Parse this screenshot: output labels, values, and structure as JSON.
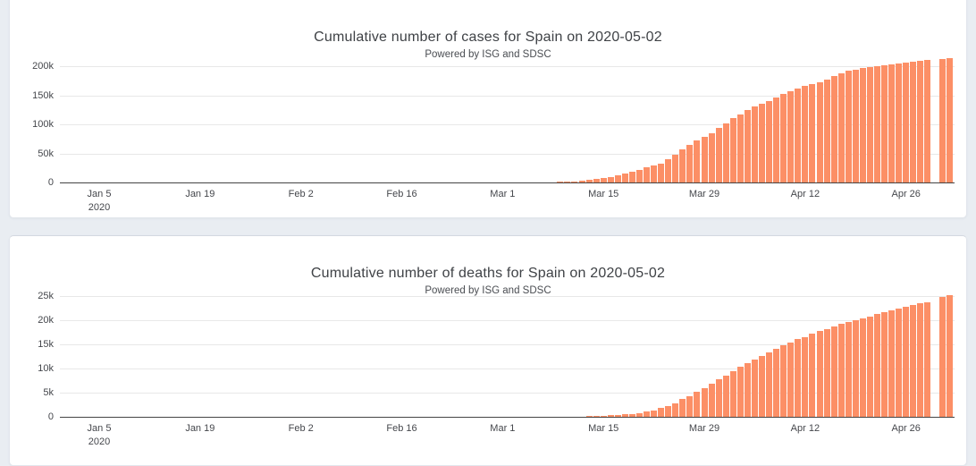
{
  "page": {
    "background_color": "#e9edf2",
    "card_background_color": "#ffffff",
    "text_color": "#444444"
  },
  "chart_data": [
    {
      "type": "bar",
      "title": "Cumulative number of cases for Spain on 2020-05-02",
      "subtitle": "Powered by ISG and SDSC",
      "xlabel": "",
      "ylabel": "",
      "start_date": "2019-12-31",
      "end_date": "2020-05-02",
      "frequency": "daily",
      "ylim": [
        0,
        220000
      ],
      "grid": true,
      "legend": false,
      "bar_color": "#fc8f66",
      "grid_color": "#e8e8e8",
      "axis_color": "#444444",
      "missing_day": "2020-04-30",
      "yticks": [
        {
          "value": 0,
          "label": "0"
        },
        {
          "value": 50000,
          "label": "50k"
        },
        {
          "value": 100000,
          "label": "100k"
        },
        {
          "value": 150000,
          "label": "150k"
        },
        {
          "value": 200000,
          "label": "200k"
        }
      ],
      "xticks": [
        {
          "day": 5,
          "label": "Jan 5",
          "sub": "2020"
        },
        {
          "day": 19,
          "label": "Jan 19"
        },
        {
          "day": 33,
          "label": "Feb 2"
        },
        {
          "day": 47,
          "label": "Feb 16"
        },
        {
          "day": 61,
          "label": "Mar 1"
        },
        {
          "day": 75,
          "label": "Mar 15"
        },
        {
          "day": 89,
          "label": "Mar 29"
        },
        {
          "day": 103,
          "label": "Apr 12"
        },
        {
          "day": 117,
          "label": "Apr 26"
        }
      ],
      "values": [
        0,
        0,
        0,
        0,
        0,
        0,
        0,
        0,
        0,
        0,
        0,
        0,
        0,
        0,
        0,
        0,
        0,
        0,
        0,
        0,
        0,
        0,
        0,
        0,
        0,
        0,
        0,
        0,
        0,
        0,
        0,
        0,
        0,
        0,
        0,
        0,
        0,
        0,
        0,
        0,
        0,
        0,
        0,
        0,
        0,
        0,
        0,
        0,
        0,
        0,
        0,
        0,
        0,
        0,
        0,
        3,
        6,
        13,
        25,
        45,
        66,
        84,
        120,
        165,
        222,
        259,
        400,
        500,
        673,
        1073,
        1695,
        2277,
        3146,
        4473,
        5962,
        7798,
        9942,
        11826,
        14769,
        18077,
        21571,
        25496,
        28768,
        33089,
        39885,
        47610,
        56188,
        64059,
        72248,
        78797,
        85195,
        94417,
        102136,
        110238,
        117710,
        124736,
        130759,
        135032,
        140510,
        146690,
        152446,
        157022,
        161852,
        166019,
        169496,
        172541,
        177633,
        182816,
        188068,
        191726,
        194416,
        196750,
        198674,
        200210,
        202178,
        203715,
        205085,
        206317,
        207634,
        209465,
        210773,
        null,
        211953,
        213435
      ]
    },
    {
      "type": "bar",
      "title": "Cumulative number of deaths for Spain on 2020-05-02",
      "subtitle": "Powered by ISG and SDSC",
      "xlabel": "",
      "ylabel": "",
      "start_date": "2019-12-31",
      "end_date": "2020-05-02",
      "frequency": "daily",
      "ylim": [
        0,
        26000
      ],
      "grid": true,
      "legend": false,
      "bar_color": "#fc8f66",
      "grid_color": "#e8e8e8",
      "axis_color": "#444444",
      "missing_day": "2020-04-30",
      "yticks": [
        {
          "value": 0,
          "label": "0"
        },
        {
          "value": 5000,
          "label": "5k"
        },
        {
          "value": 10000,
          "label": "10k"
        },
        {
          "value": 15000,
          "label": "15k"
        },
        {
          "value": 20000,
          "label": "20k"
        },
        {
          "value": 25000,
          "label": "25k"
        }
      ],
      "xticks": [
        {
          "day": 5,
          "label": "Jan 5",
          "sub": "2020"
        },
        {
          "day": 19,
          "label": "Jan 19"
        },
        {
          "day": 33,
          "label": "Feb 2"
        },
        {
          "day": 47,
          "label": "Feb 16"
        },
        {
          "day": 61,
          "label": "Mar 1"
        },
        {
          "day": 75,
          "label": "Mar 15"
        },
        {
          "day": 89,
          "label": "Mar 29"
        },
        {
          "day": 103,
          "label": "Apr 12"
        },
        {
          "day": 117,
          "label": "Apr 26"
        }
      ],
      "values": [
        0,
        0,
        0,
        0,
        0,
        0,
        0,
        0,
        0,
        0,
        0,
        0,
        0,
        0,
        0,
        0,
        0,
        0,
        0,
        0,
        0,
        0,
        0,
        0,
        0,
        0,
        0,
        0,
        0,
        0,
        0,
        0,
        0,
        0,
        0,
        0,
        0,
        0,
        0,
        0,
        0,
        0,
        0,
        0,
        0,
        0,
        0,
        0,
        0,
        0,
        0,
        0,
        0,
        0,
        0,
        0,
        0,
        0,
        0,
        0,
        0,
        0,
        0,
        1,
        2,
        3,
        5,
        10,
        17,
        28,
        35,
        54,
        84,
        120,
        136,
        195,
        289,
        342,
        533,
        623,
        830,
        1043,
        1375,
        1772,
        2311,
        2808,
        3647,
        4365,
        5138,
        5982,
        6803,
        7716,
        8464,
        9387,
        10348,
        11198,
        11947,
        12641,
        13341,
        14045,
        14792,
        15447,
        16081,
        16606,
        17209,
        17756,
        18255,
        18708,
        19315,
        19613,
        20043,
        20453,
        20852,
        21282,
        21717,
        22157,
        22524,
        22902,
        23190,
        23521,
        23822,
        null,
        24824,
        25264
      ]
    }
  ]
}
